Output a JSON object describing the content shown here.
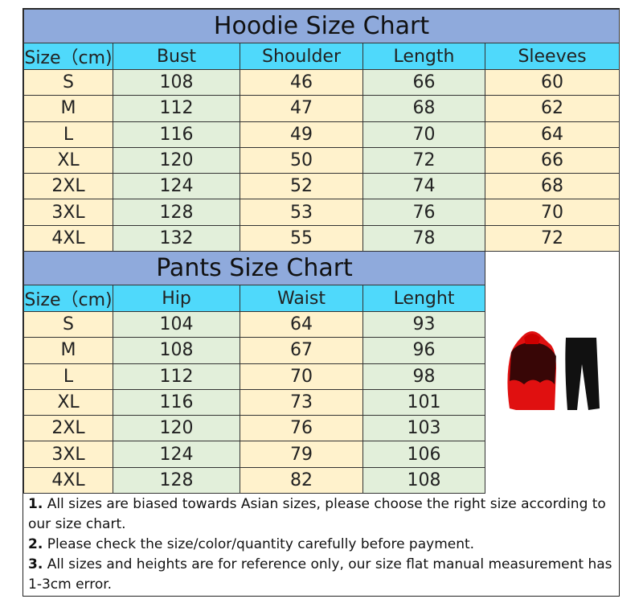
{
  "hoodie": {
    "title": "Hoodie Size Chart",
    "headers": [
      "Size（cm)",
      "Bust",
      "Shoulder",
      "Length",
      "Sleeves"
    ],
    "rows": [
      [
        "S",
        "108",
        "46",
        "66",
        "60"
      ],
      [
        "M",
        "112",
        "47",
        "68",
        "62"
      ],
      [
        "L",
        "116",
        "49",
        "70",
        "64"
      ],
      [
        "XL",
        "120",
        "50",
        "72",
        "66"
      ],
      [
        "2XL",
        "124",
        "52",
        "74",
        "68"
      ],
      [
        "3XL",
        "128",
        "53",
        "76",
        "70"
      ],
      [
        "4XL",
        "132",
        "55",
        "78",
        "72"
      ]
    ]
  },
  "pants": {
    "title": "Pants Size Chart",
    "headers": [
      "Size（cm)",
      "Hip",
      "Waist",
      "Lenght"
    ],
    "rows": [
      [
        "S",
        "104",
        "64",
        "93"
      ],
      [
        "M",
        "108",
        "67",
        "96"
      ],
      [
        "L",
        "112",
        "70",
        "98"
      ],
      [
        "XL",
        "116",
        "73",
        "101"
      ],
      [
        "2XL",
        "120",
        "76",
        "103"
      ],
      [
        "3XL",
        "124",
        "79",
        "106"
      ],
      [
        "4XL",
        "128",
        "82",
        "108"
      ]
    ]
  },
  "notes": [
    {
      "num": "1.",
      "text": " All sizes are biased towards Asian sizes, please choose the right size according to our size chart."
    },
    {
      "num": "2.",
      "text": " Please check the size/color/quantity carefully before payment."
    },
    {
      "num": "3.",
      "text": " All sizes and heights are for reference only, our size flat manual measurement has 1-3cm error."
    }
  ],
  "product_image": {
    "icon": "red-black-hoodie-and-black-pants",
    "colors": {
      "hoodie": "#e01010",
      "print": "#1a0505",
      "pants": "#111111"
    }
  }
}
